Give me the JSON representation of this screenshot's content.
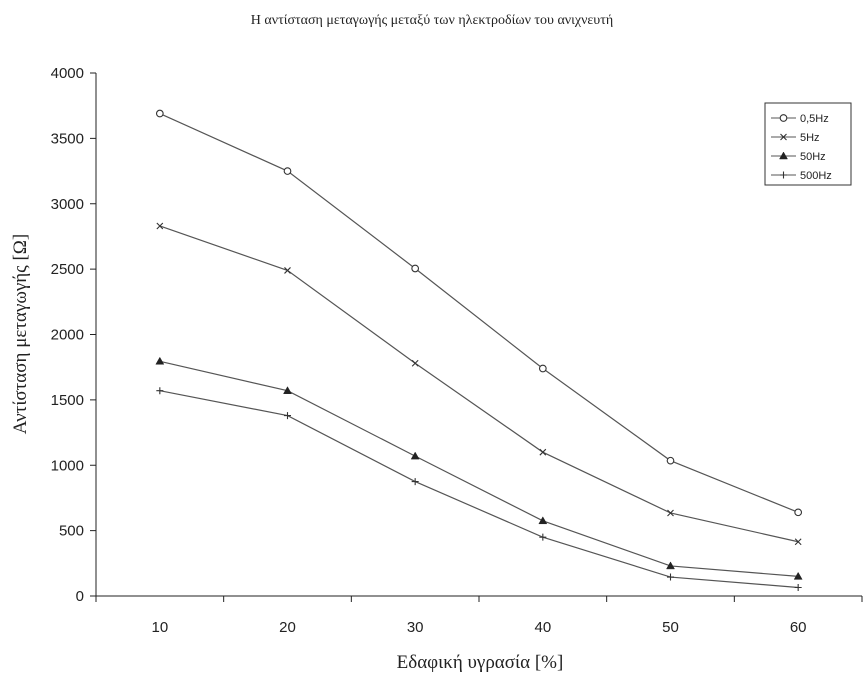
{
  "chart_data": {
    "type": "line",
    "title": "Η αντίσταση μεταγωγής μεταξύ των ηλεκτροδίων του ανιχνευτή",
    "xlabel": "Εδαφική υγρασία [%]",
    "ylabel": "Αντίσταση μεταγωγής [Ω]",
    "x": [
      10,
      20,
      30,
      40,
      50,
      60
    ],
    "x_ticks": [
      "10",
      "20",
      "30",
      "40",
      "50",
      "60"
    ],
    "y_ticks": [
      "0",
      "500",
      "1000",
      "1500",
      "2000",
      "2500",
      "3000",
      "3500",
      "4000"
    ],
    "xlim": [
      5,
      65
    ],
    "ylim": [
      0,
      4000
    ],
    "grid": false,
    "legend_position": "top-right",
    "series": [
      {
        "name": "0,5Hz",
        "marker": "circle-open",
        "values": [
          3690,
          3250,
          2505,
          1740,
          1035,
          640
        ]
      },
      {
        "name": "5Hz",
        "marker": "x",
        "values": [
          2830,
          2490,
          1780,
          1100,
          635,
          415
        ]
      },
      {
        "name": "50Hz",
        "marker": "triangle-filled",
        "values": [
          1795,
          1570,
          1070,
          575,
          230,
          150
        ]
      },
      {
        "name": "500Hz",
        "marker": "plus",
        "values": [
          1570,
          1380,
          875,
          450,
          145,
          65
        ]
      }
    ]
  }
}
